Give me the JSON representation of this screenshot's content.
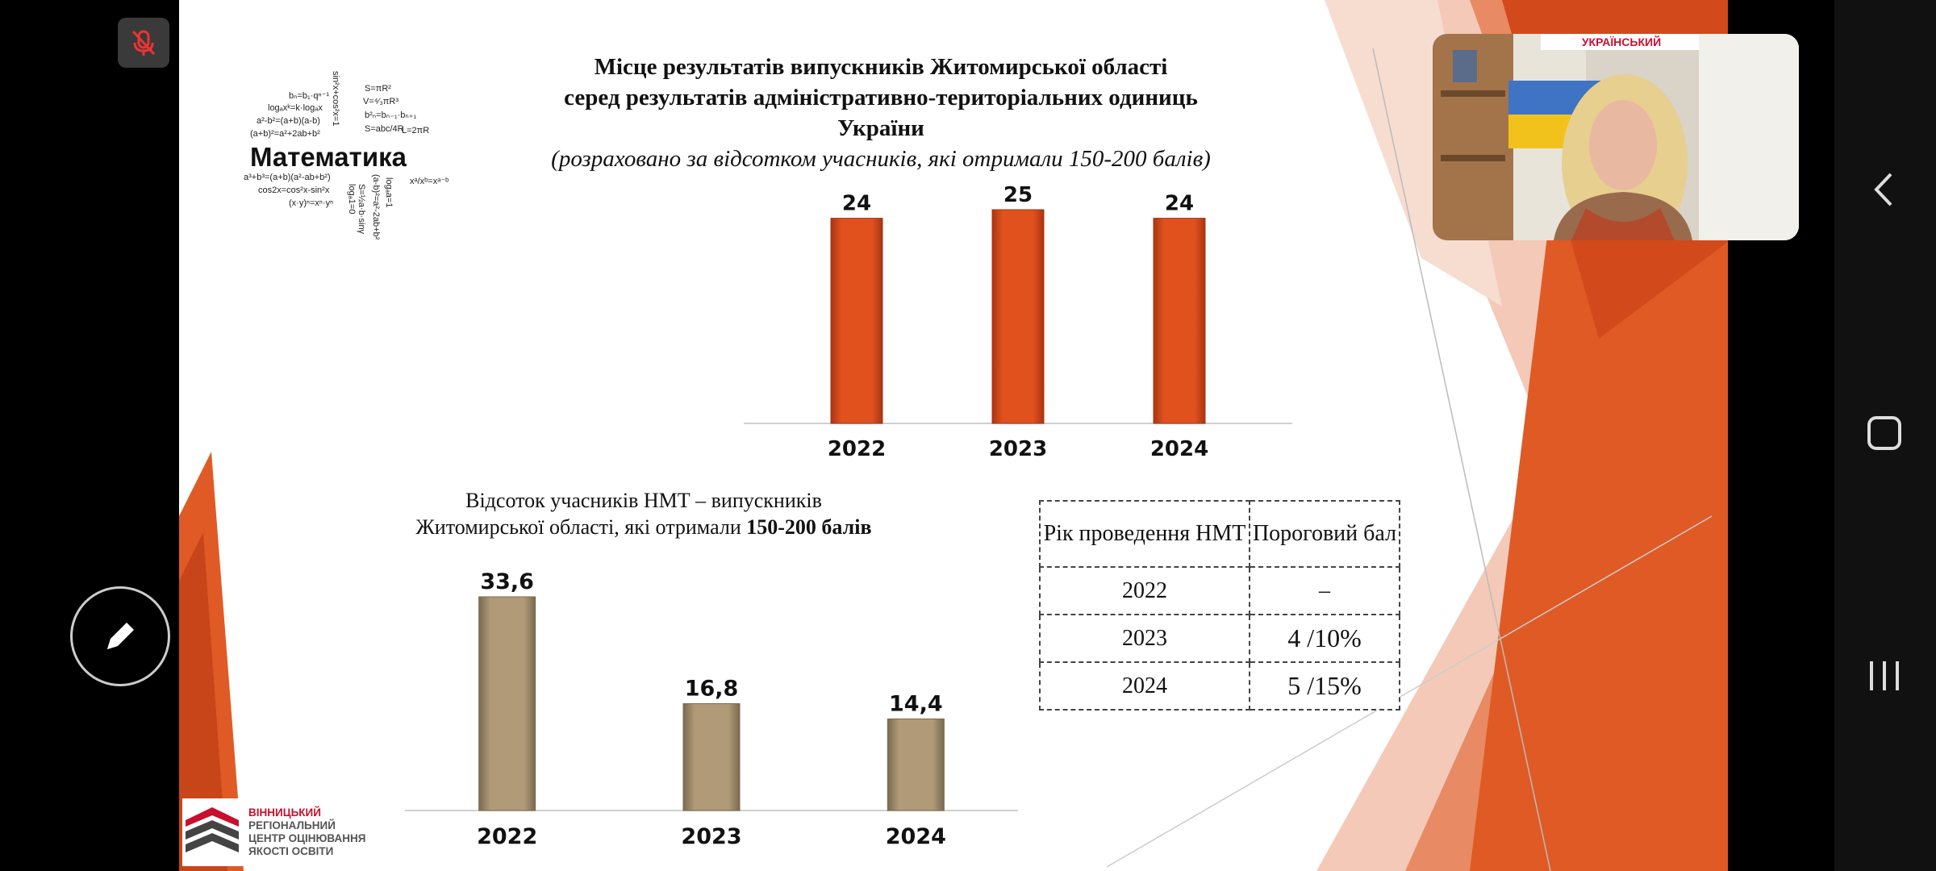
{
  "slide": {
    "title_line1": "Місце результатів  випускників Житомирської області",
    "title_line2": "серед результатів адміністративно-територіальних одиниць України",
    "title_line3": "(розраховано за відсотком учасників, які отримали  150-200 балів)",
    "logo_word": "Математика",
    "logo_formulas": [
      "bₙ=b₁·qⁿ⁻¹",
      "S=πR²",
      "logₐxᵏ=k·logₐx",
      "V=⁴⁄₃πR³",
      "a²-b²=(a+b)(a-b)",
      "b²ₙ=bₙ₋₁·bₙ₊₁",
      "(a+b)²=a²+2ab+b²",
      "S=abc/4R",
      "L=2πR",
      "a³+b³=(a+b)(a²-ab+b²)",
      "cos2x=cos²x-sin²x",
      "(x·y)ⁿ=xⁿ·yⁿ",
      "sin²x+cos²x=1",
      "logₐ1=0",
      "S=½a·b·sinγ",
      "(a-b)²=a²-2ab+b²",
      "logₐa=1",
      "xᵃ/xᵇ=xᵃ⁻ᵇ"
    ],
    "bottom_caption_line1": "Відсоток учасників НМТ – випускників",
    "bottom_caption_line2": "Житомирської області, які отримали ",
    "bottom_caption_bold": "150-200 балів",
    "table": {
      "header_year": "Рік проведення НМТ",
      "header_threshold": "Пороговий бал",
      "rows": [
        {
          "year": "2022",
          "value": "–"
        },
        {
          "year": "2023",
          "value": "4 /10%"
        },
        {
          "year": "2024",
          "value": "5 /15%"
        }
      ]
    },
    "org_logo": {
      "line1": "ВІННИЦЬКИЙ",
      "line2": "РЕГІОНАЛЬНИЙ",
      "line3": "ЦЕНТР ОЦІНЮВАННЯ",
      "line4": "ЯКОСТІ ОСВІТИ"
    }
  },
  "video": {
    "banner_text": "УКРАЇНСЬКИЙ"
  },
  "colors": {
    "orange_bar": "#e0511e",
    "tan_bar": "#b09a78",
    "accent_red": "#c8102e"
  },
  "chart_data": [
    {
      "type": "bar",
      "categories": [
        "2022",
        "2023",
        "2024"
      ],
      "values": [
        24,
        25,
        24
      ],
      "title": "",
      "xlabel": "",
      "ylabel": "",
      "color": "#e0511e"
    },
    {
      "type": "bar",
      "categories": [
        "2022",
        "2023",
        "2024"
      ],
      "values": [
        33.6,
        16.8,
        14.4
      ],
      "value_labels": [
        "33,6",
        "16,8",
        "14,4"
      ],
      "title": "",
      "xlabel": "",
      "ylabel": "",
      "color": "#b09a78"
    }
  ]
}
